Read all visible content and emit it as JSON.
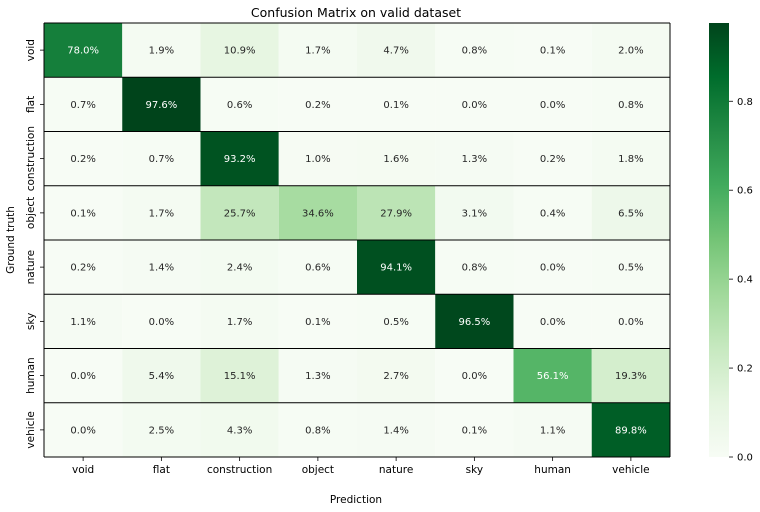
{
  "chart_data": {
    "type": "heatmap",
    "title": "Confusion Matrix on valid dataset",
    "xlabel": "Prediction",
    "ylabel": "Ground truth",
    "x_categories": [
      "void",
      "flat",
      "construction",
      "object",
      "nature",
      "sky",
      "human",
      "vehicle"
    ],
    "y_categories": [
      "void",
      "flat",
      "construction",
      "object",
      "nature",
      "sky",
      "human",
      "vehicle"
    ],
    "values": [
      [
        0.78,
        0.019,
        0.109,
        0.017,
        0.047,
        0.008,
        0.001,
        0.02
      ],
      [
        0.007,
        0.976,
        0.006,
        0.002,
        0.001,
        0.0,
        0.0,
        0.008
      ],
      [
        0.002,
        0.007,
        0.932,
        0.01,
        0.016,
        0.013,
        0.002,
        0.018
      ],
      [
        0.001,
        0.017,
        0.257,
        0.346,
        0.279,
        0.031,
        0.004,
        0.065
      ],
      [
        0.002,
        0.014,
        0.024,
        0.006,
        0.941,
        0.008,
        0.0,
        0.005
      ],
      [
        0.011,
        0.0,
        0.017,
        0.001,
        0.005,
        0.965,
        0.0,
        0.0
      ],
      [
        0.0,
        0.054,
        0.151,
        0.013,
        0.027,
        0.0,
        0.561,
        0.193
      ],
      [
        0.0,
        0.025,
        0.043,
        0.008,
        0.014,
        0.001,
        0.011,
        0.898
      ]
    ],
    "cell_labels": [
      [
        "78.0%",
        "1.9%",
        "10.9%",
        "1.7%",
        "4.7%",
        "0.8%",
        "0.1%",
        "2.0%"
      ],
      [
        "0.7%",
        "97.6%",
        "0.6%",
        "0.2%",
        "0.1%",
        "0.0%",
        "0.0%",
        "0.8%"
      ],
      [
        "0.2%",
        "0.7%",
        "93.2%",
        "1.0%",
        "1.6%",
        "1.3%",
        "0.2%",
        "1.8%"
      ],
      [
        "0.1%",
        "1.7%",
        "25.7%",
        "34.6%",
        "27.9%",
        "3.1%",
        "0.4%",
        "6.5%"
      ],
      [
        "0.2%",
        "1.4%",
        "2.4%",
        "0.6%",
        "94.1%",
        "0.8%",
        "0.0%",
        "0.5%"
      ],
      [
        "1.1%",
        "0.0%",
        "1.7%",
        "0.1%",
        "0.5%",
        "96.5%",
        "0.0%",
        "0.0%"
      ],
      [
        "0.0%",
        "5.4%",
        "15.1%",
        "1.3%",
        "2.7%",
        "0.0%",
        "56.1%",
        "19.3%"
      ],
      [
        "0.0%",
        "2.5%",
        "4.3%",
        "0.8%",
        "1.4%",
        "0.1%",
        "1.1%",
        "89.8%"
      ]
    ],
    "colorbar": {
      "range": [
        0.0,
        0.976
      ],
      "ticks": [
        0.0,
        0.2,
        0.4,
        0.6,
        0.8
      ],
      "tick_labels": [
        "0.0",
        "0.2",
        "0.4",
        "0.6",
        "0.8"
      ],
      "colormap": "Greens"
    },
    "grid": true
  }
}
